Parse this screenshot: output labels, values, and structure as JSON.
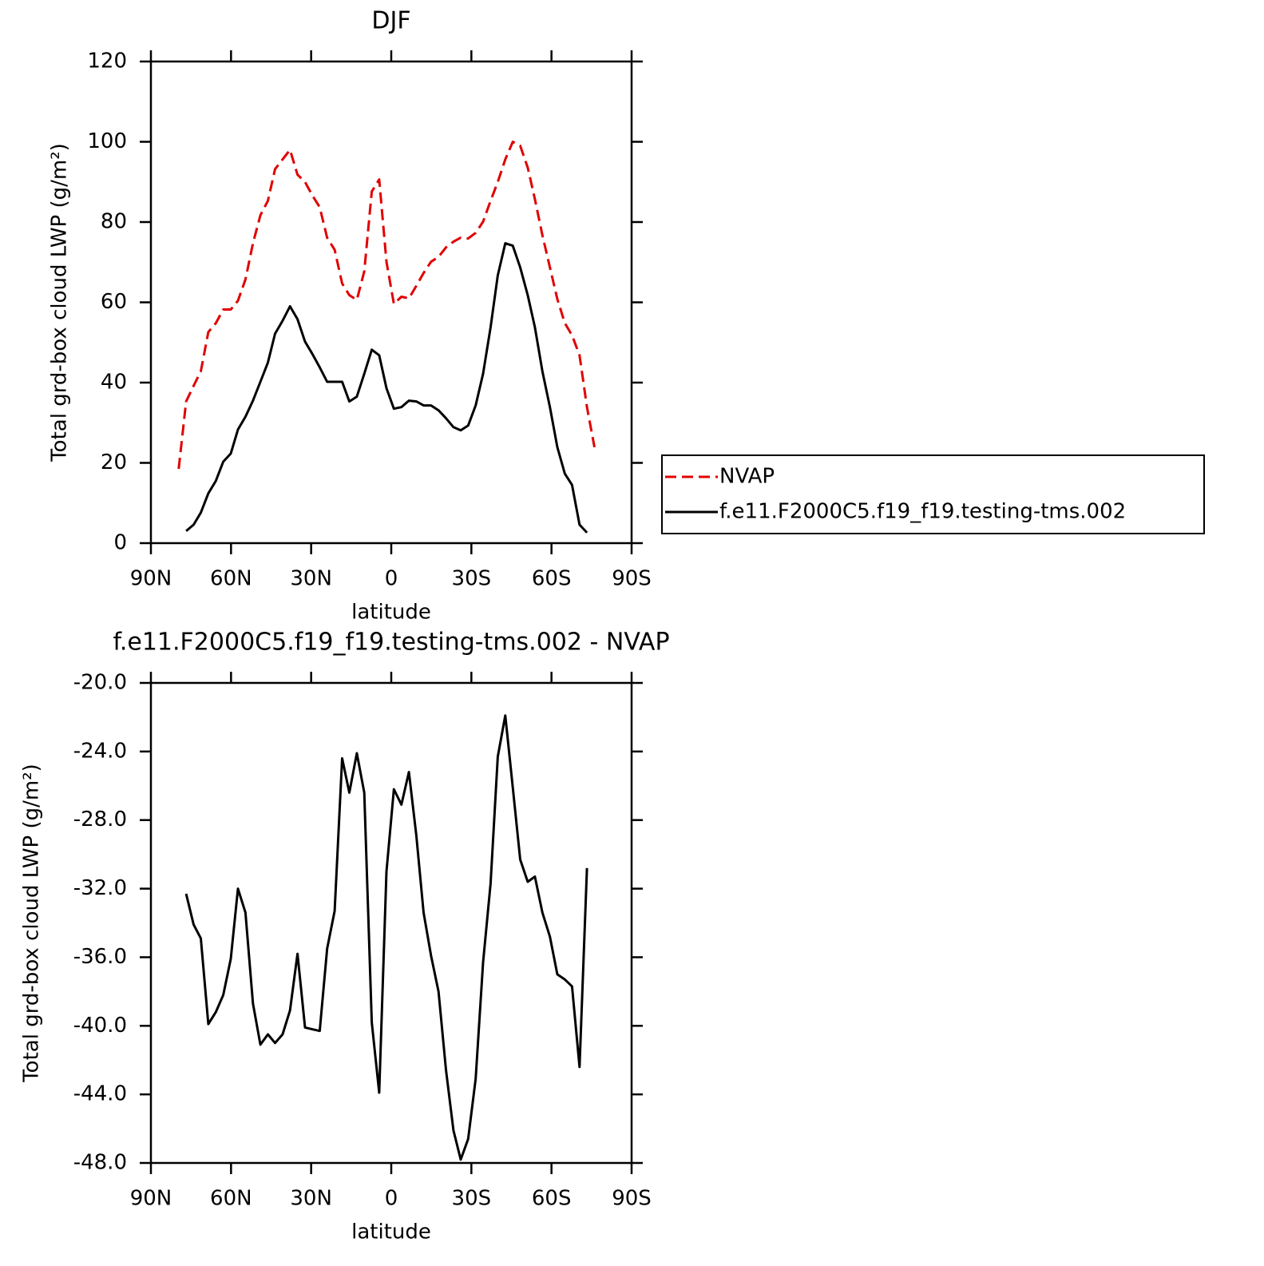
{
  "chart_data": [
    {
      "type": "line",
      "title": "DJF",
      "x_label": "latitude",
      "y_label": "Total grd-box cloud LWP (g/m²)",
      "x": [
        79.6,
        76.8,
        74.0,
        71.3,
        68.5,
        65.7,
        62.9,
        60.1,
        57.4,
        54.6,
        51.8,
        49.0,
        46.2,
        43.5,
        40.7,
        37.9,
        35.1,
        32.3,
        29.6,
        26.8,
        24.0,
        21.2,
        18.4,
        15.7,
        12.9,
        10.1,
        7.3,
        4.5,
        1.8,
        -1.0,
        -3.8,
        -6.6,
        -9.4,
        -12.1,
        -14.9,
        -17.7,
        -20.5,
        -23.3,
        -26.0,
        -28.8,
        -31.6,
        -34.4,
        -37.2,
        -39.9,
        -42.7,
        -45.5,
        -48.3,
        -51.1,
        -53.8,
        -56.6,
        -59.4,
        -62.2,
        -65.0,
        -67.7,
        -70.5,
        -73.3,
        -76.1
      ],
      "series": [
        {
          "name": "NVAP",
          "color": "#e00000",
          "dashed": true,
          "values": [
            18.5,
            35.3,
            39.2,
            42.8,
            52.6,
            54.8,
            58.2,
            58.2,
            60.4,
            65.7,
            74.7,
            81.7,
            85.3,
            93.2,
            95.6,
            98.0,
            91.8,
            90.0,
            86.7,
            83.7,
            76.1,
            73.1,
            64.7,
            61.8,
            60.6,
            67.7,
            87.6,
            90.6,
            70.1,
            59.6,
            61.4,
            61.0,
            64.1,
            67.3,
            70.1,
            71.3,
            73.7,
            75.1,
            76.1,
            75.9,
            77.3,
            80.1,
            85.3,
            90.0,
            95.6,
            100.0,
            99.0,
            93.6,
            85.7,
            76.7,
            68.7,
            60.8,
            54.8,
            51.8,
            46.8,
            33.9,
            23.9
          ]
        },
        {
          "name": "f.e11.F2000C5.f19_f19.testing-tms.002",
          "color": "#000000",
          "dashed": false,
          "values": [
            null,
            3.0,
            4.6,
            7.6,
            12.4,
            15.5,
            20.3,
            22.3,
            28.3,
            31.5,
            35.5,
            40.2,
            45.0,
            52.2,
            55.4,
            59.0,
            55.8,
            50.2,
            47.2,
            43.8,
            40.2,
            40.2,
            40.2,
            35.3,
            36.5,
            42.2,
            48.2,
            46.8,
            38.6,
            33.5,
            33.9,
            35.5,
            35.3,
            34.3,
            34.3,
            33.1,
            31.1,
            28.9,
            28.1,
            29.3,
            34.3,
            42.2,
            53.8,
            66.7,
            74.7,
            74.1,
            68.7,
            61.8,
            53.8,
            42.8,
            33.9,
            23.9,
            17.3,
            14.5,
            4.6,
            2.6,
            null
          ]
        }
      ],
      "xlim": [
        90,
        -90
      ],
      "xticks": [
        {
          "value": 90,
          "label": "90N"
        },
        {
          "value": 60,
          "label": "60N"
        },
        {
          "value": 30,
          "label": "30N"
        },
        0,
        {
          "value": -30,
          "label": "30S"
        },
        {
          "value": -60,
          "label": "60S"
        },
        {
          "value": -90,
          "label": "90S"
        }
      ],
      "ylim": [
        0,
        120
      ],
      "yticks": [
        0,
        20,
        40,
        60,
        80,
        100,
        120
      ],
      "legend": "outside right"
    },
    {
      "type": "line",
      "title": "f.e11.F2000C5.f19_f19.testing-tms.002 - NVAP",
      "x_label": "latitude",
      "y_label": "Total grd-box cloud LWP (g/m²)",
      "x": [
        76.8,
        74.0,
        71.3,
        68.5,
        65.7,
        62.9,
        60.1,
        57.4,
        54.6,
        51.8,
        49.0,
        46.2,
        43.5,
        40.7,
        37.9,
        35.1,
        32.3,
        29.6,
        26.8,
        24.0,
        21.2,
        18.4,
        15.7,
        12.9,
        10.1,
        7.3,
        4.5,
        1.8,
        -1.0,
        -3.8,
        -6.6,
        -9.4,
        -12.1,
        -14.9,
        -17.7,
        -20.5,
        -23.3,
        -26.0,
        -28.8,
        -31.6,
        -34.4,
        -37.2,
        -39.9,
        -42.7,
        -45.5,
        -48.3,
        -51.1,
        -53.8,
        -56.6,
        -59.4,
        -62.2,
        -65.0,
        -67.7,
        -70.5,
        -73.3
      ],
      "color": "#000000",
      "values": [
        -32.3,
        -34.1,
        -34.9,
        -39.9,
        -39.2,
        -38.2,
        -36.1,
        -32.0,
        -33.4,
        -38.7,
        -41.1,
        -40.5,
        -41.0,
        -40.5,
        -39.1,
        -35.8,
        -40.1,
        -40.2,
        -40.3,
        -35.5,
        -33.3,
        -24.4,
        -26.4,
        -24.1,
        -26.4,
        -39.8,
        -43.9,
        -31.0,
        -26.2,
        -27.1,
        -25.2,
        -28.9,
        -33.4,
        -35.9,
        -38.0,
        -42.6,
        -46.1,
        -47.8,
        -46.6,
        -43.1,
        -36.3,
        -31.7,
        -24.3,
        -21.9,
        -26.1,
        -30.3,
        -31.6,
        -31.3,
        -33.4,
        -34.8,
        -37.0,
        -37.3,
        -37.7,
        -42.4,
        -30.8
      ],
      "xlim": [
        90,
        -90
      ],
      "xticks": [
        {
          "value": 90,
          "label": "90N"
        },
        {
          "value": 60,
          "label": "60N"
        },
        {
          "value": 30,
          "label": "30N"
        },
        0,
        {
          "value": -30,
          "label": "30S"
        },
        {
          "value": -60,
          "label": "60S"
        },
        {
          "value": -90,
          "label": "90S"
        }
      ],
      "ylim": [
        -48,
        -20
      ],
      "yticks": [
        {
          "value": -48,
          "label": "-48.0"
        },
        {
          "value": -44,
          "label": "-44.0"
        },
        {
          "value": -40,
          "label": "-40.0"
        },
        {
          "value": -36,
          "label": "-36.0"
        },
        {
          "value": -32,
          "label": "-32.0"
        },
        {
          "value": -28,
          "label": "-28.0"
        },
        {
          "value": -24,
          "label": "-24.0"
        },
        {
          "value": -20,
          "label": "-20.0"
        }
      ]
    }
  ]
}
